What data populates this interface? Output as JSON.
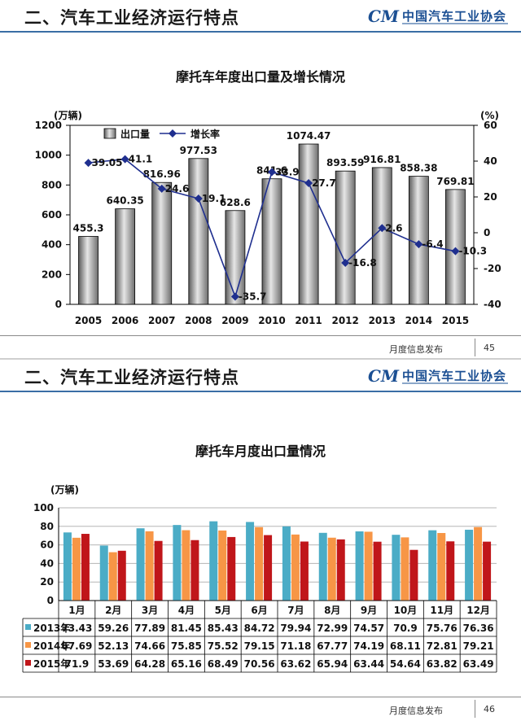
{
  "slides": [
    {
      "header_title": "二、汽车工业经济运行特点",
      "logo_text": "中国汽车工业协会",
      "footer_text": "月度信息发布",
      "page_number": "45"
    },
    {
      "header_title": "二、汽车工业经济运行特点",
      "logo_text": "中国汽车工业协会",
      "footer_text": "月度信息发布",
      "page_number": "46"
    }
  ],
  "logo_mark": "CM",
  "colors": {
    "header_line": "#3a6ea5",
    "bar_gray": "#8c8c8c",
    "line_blue": "#1f2f8f",
    "s2013": "#4bacc6",
    "s2014": "#f79646",
    "s2015": "#c0161a"
  },
  "chart_data": [
    {
      "type": "bar",
      "title": "摩托车年度出口量及增长情况",
      "ylabel_left": "(万辆)",
      "ylabel_right": "(%)",
      "ylim_left": [
        0,
        1200
      ],
      "ylim_right": [
        -40,
        60
      ],
      "yticks_left": [
        "0",
        "200",
        "400",
        "600",
        "800",
        "1000",
        "1200"
      ],
      "yticks_right": [
        "-40",
        "-20",
        "0",
        "20",
        "40",
        "60"
      ],
      "categories": [
        "2005",
        "2006",
        "2007",
        "2008",
        "2009",
        "2010",
        "2011",
        "2012",
        "2013",
        "2014",
        "2015"
      ],
      "series": [
        {
          "name": "出口量",
          "type": "bar",
          "axis": "left",
          "values": [
            455.3,
            640.35,
            816.96,
            977.53,
            628.6,
            841.6,
            1074.47,
            893.59,
            916.81,
            858.38,
            769.81
          ],
          "labels": [
            "455.3",
            "640.35",
            "816.96",
            "977.53",
            "628.6",
            "841.6",
            "1074.47",
            "893.59",
            "916.81",
            "858.38",
            "769.81"
          ]
        },
        {
          "name": "增长率",
          "type": "line",
          "axis": "right",
          "values": [
            39.05,
            41.1,
            24.6,
            19.1,
            -35.7,
            33.9,
            27.7,
            -16.8,
            2.6,
            -6.4,
            -10.3
          ],
          "labels": [
            "39.05",
            "41.1",
            "24.6",
            "19.1",
            "-35.7",
            "33.9",
            "27.7",
            "-16.8",
            "2.6",
            "-6.4",
            "-10.3"
          ]
        }
      ],
      "legend": "top-left",
      "grid": false
    },
    {
      "type": "bar",
      "title": "摩托车月度出口量情况",
      "ylabel": "(万辆)",
      "ylim": [
        0,
        100
      ],
      "yticks": [
        "0",
        "20",
        "40",
        "60",
        "80",
        "100"
      ],
      "categories": [
        "1月",
        "2月",
        "3月",
        "4月",
        "5月",
        "6月",
        "7月",
        "8月",
        "9月",
        "10月",
        "11月",
        "12月"
      ],
      "series": [
        {
          "name": "2013年",
          "values": [
            73.43,
            59.26,
            77.89,
            81.45,
            85.43,
            84.72,
            79.94,
            72.99,
            74.57,
            70.9,
            75.76,
            76.36
          ],
          "labels": [
            "73.43",
            "59.26",
            "77.89",
            "81.45",
            "85.43",
            "84.72",
            "79.94",
            "72.99",
            "74.57",
            "70.9",
            "75.76",
            "76.36"
          ]
        },
        {
          "name": "2014年",
          "values": [
            67.69,
            52.13,
            74.66,
            75.85,
            75.52,
            79.15,
            71.18,
            67.77,
            74.19,
            68.11,
            72.81,
            79.21
          ],
          "labels": [
            "67.69",
            "52.13",
            "74.66",
            "75.85",
            "75.52",
            "79.15",
            "71.18",
            "67.77",
            "74.19",
            "68.11",
            "72.81",
            "79.21"
          ]
        },
        {
          "name": "2015年",
          "values": [
            71.9,
            53.69,
            64.28,
            65.16,
            68.49,
            70.56,
            63.62,
            65.94,
            63.44,
            54.64,
            63.82,
            63.49
          ],
          "labels": [
            "71.9",
            "53.69",
            "64.28",
            "65.16",
            "68.49",
            "70.56",
            "63.62",
            "65.94",
            "63.44",
            "54.64",
            "63.82",
            "63.49"
          ]
        }
      ],
      "data_table": true,
      "grid": true
    }
  ]
}
